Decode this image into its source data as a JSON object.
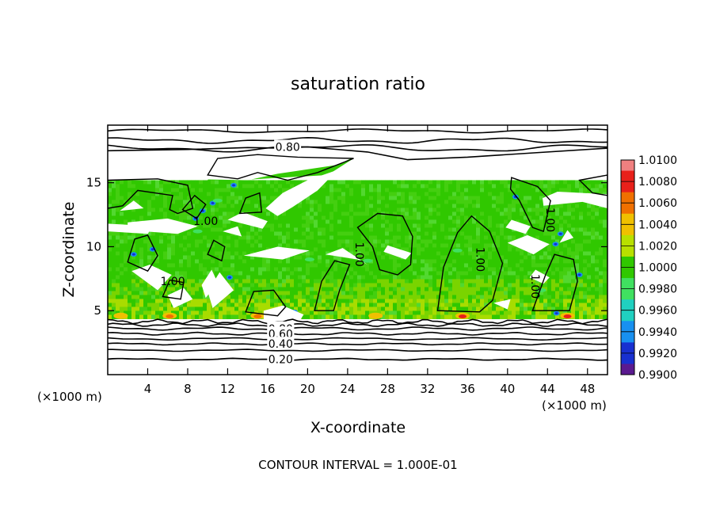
{
  "chart_data": {
    "type": "heatmap",
    "title": "saturation ratio",
    "xlabel": "X-coordinate",
    "ylabel": "Z-coordinate",
    "x_unit_label": "(×1000 m)",
    "z_unit_label": "(×1000 m)",
    "xlim": [
      0,
      50
    ],
    "ylim": [
      0,
      19.5
    ],
    "x_ticks": [
      4,
      8,
      12,
      16,
      20,
      24,
      28,
      32,
      36,
      40,
      44,
      48
    ],
    "y_ticks": [
      5,
      10,
      15
    ],
    "footer": "CONTOUR INTERVAL = 1.000E-01",
    "colorbar": {
      "levels": [
        "1.0100",
        "1.0080",
        "1.0060",
        "1.0040",
        "1.0020",
        "1.0000",
        "0.9980",
        "0.9960",
        "0.9940",
        "0.9920",
        "0.9900"
      ],
      "colors": [
        "#f08080",
        "#e8201a",
        "#f07000",
        "#f0c000",
        "#b8e000",
        "#30c800",
        "#40e060",
        "#20d0c0",
        "#1890f0",
        "#1830d0",
        "#5a1a90"
      ]
    },
    "contour_labels": [
      {
        "text": "0.80",
        "x": 18.0,
        "z": 17.8
      },
      {
        "text": "1.00",
        "x": 9.8,
        "z": 12.0
      },
      {
        "text": "1.00",
        "x": 6.5,
        "z": 7.3
      },
      {
        "text": "1.00",
        "x": 25.2,
        "z": 9.4
      },
      {
        "text": "1.00",
        "x": 37.3,
        "z": 9.0
      },
      {
        "text": "1.00",
        "x": 44.3,
        "z": 12.1
      },
      {
        "text": "1.00",
        "x": 42.8,
        "z": 6.9
      },
      {
        "text": "0.80",
        "x": 17.3,
        "z": 3.6
      },
      {
        "text": "0.60",
        "x": 17.3,
        "z": 3.2
      },
      {
        "text": "0.40",
        "x": 17.3,
        "z": 2.4
      },
      {
        "text": "0.20",
        "x": 17.3,
        "z": 1.2
      }
    ],
    "grid": false,
    "legend": "colorbar right"
  }
}
